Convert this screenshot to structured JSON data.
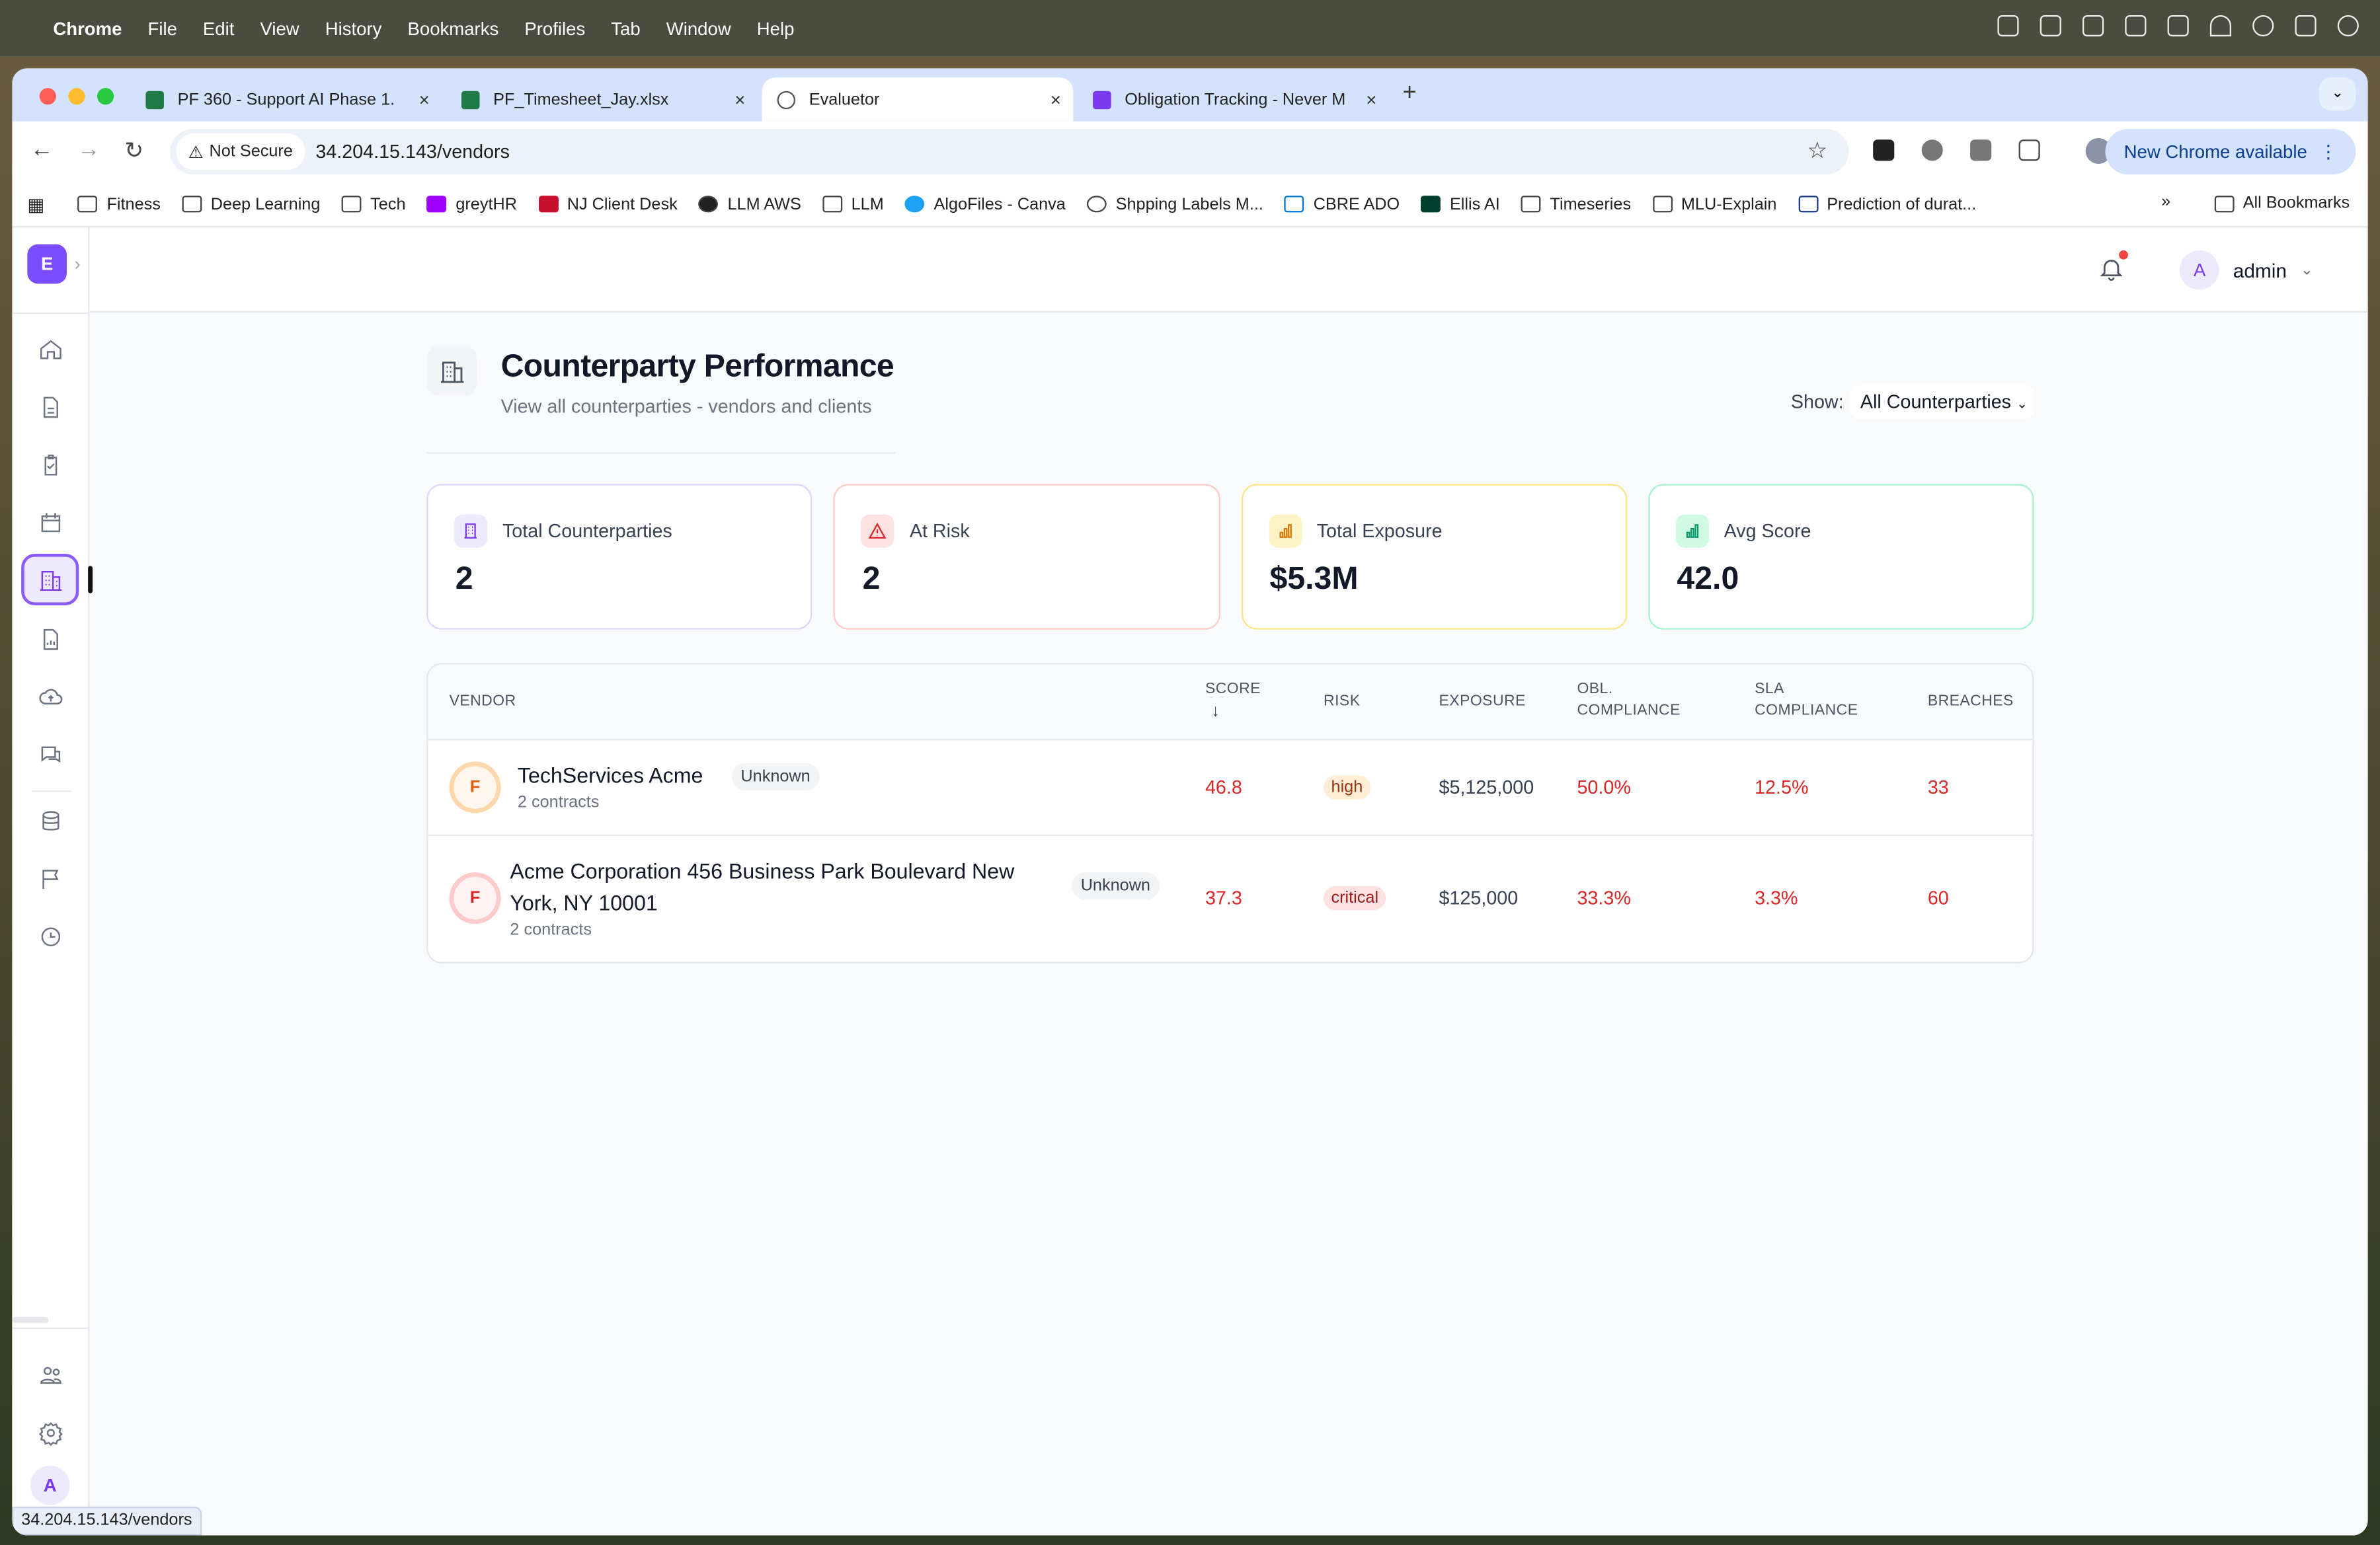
{
  "menubar": {
    "app": "Chrome",
    "items": [
      "File",
      "Edit",
      "View",
      "History",
      "Bookmarks",
      "Profiles",
      "Tab",
      "Window",
      "Help"
    ]
  },
  "browser": {
    "tabs": [
      {
        "title": "PF 360 - Support AI Phase 1.",
        "icon": "excel-icon"
      },
      {
        "title": "PF_Timesheet_Jay.xlsx",
        "icon": "excel-icon"
      },
      {
        "title": "Evaluetor",
        "icon": "globe-icon",
        "active": true
      },
      {
        "title": "Obligation Tracking - Never M",
        "icon": "e-icon"
      }
    ],
    "not_secure": "Not Secure",
    "url": "34.204.15.143/vendors",
    "new_chrome": "New Chrome available",
    "bookmarks": [
      "Fitness",
      "Deep Learning",
      "Tech",
      "greytHR",
      "NJ Client Desk",
      "LLM AWS",
      "LLM",
      "AlgoFiles - Canva",
      "Shpping Labels M...",
      "CBRE ADO",
      "Ellis AI",
      "Timeseries",
      "MLU-Explain",
      "Prediction of durat..."
    ],
    "all_bookmarks": "All Bookmarks",
    "status_url": "34.204.15.143/vendors"
  },
  "app": {
    "logo": "E",
    "user": {
      "initial": "A",
      "name": "admin"
    },
    "sidebar_avatar": "A",
    "accent": "#7c3aed"
  },
  "page": {
    "title": "Counterparty Performance",
    "subtitle": "View all counterparties - vendors and clients",
    "show_label": "Show:",
    "show_value": "All Counterparties"
  },
  "stats": [
    {
      "label": "Total Counterparties",
      "value": "2",
      "color": "#7c3aed"
    },
    {
      "label": "At Risk",
      "value": "2",
      "color": "#dc2626"
    },
    {
      "label": "Total Exposure",
      "value": "$5.3M",
      "color": "#d97706"
    },
    {
      "label": "Avg Score",
      "value": "42.0",
      "color": "#059669"
    }
  ],
  "table": {
    "columns": [
      "VENDOR",
      "SCORE",
      "RISK",
      "EXPOSURE",
      "OBL.",
      "COMPLIANCE",
      "SLA",
      "COMPLIANCE",
      "BREACHES"
    ],
    "sort_icon": "↓",
    "rows": [
      {
        "grade": "F",
        "name": "TechServices Acme",
        "type": "Unknown",
        "contracts": "2 contracts",
        "score": "46.8",
        "risk": "high",
        "exposure": "$5,125,000",
        "obl": "50.0%",
        "sla": "12.5%",
        "breaches": "33"
      },
      {
        "grade": "F",
        "name": "Acme Corporation 456 Business Park Boulevard New York, NY 10001",
        "type": "Unknown",
        "contracts": "2 contracts",
        "score": "37.3",
        "risk": "critical",
        "exposure": "$125,000",
        "obl": "33.3%",
        "sla": "3.3%",
        "breaches": "60"
      }
    ]
  }
}
